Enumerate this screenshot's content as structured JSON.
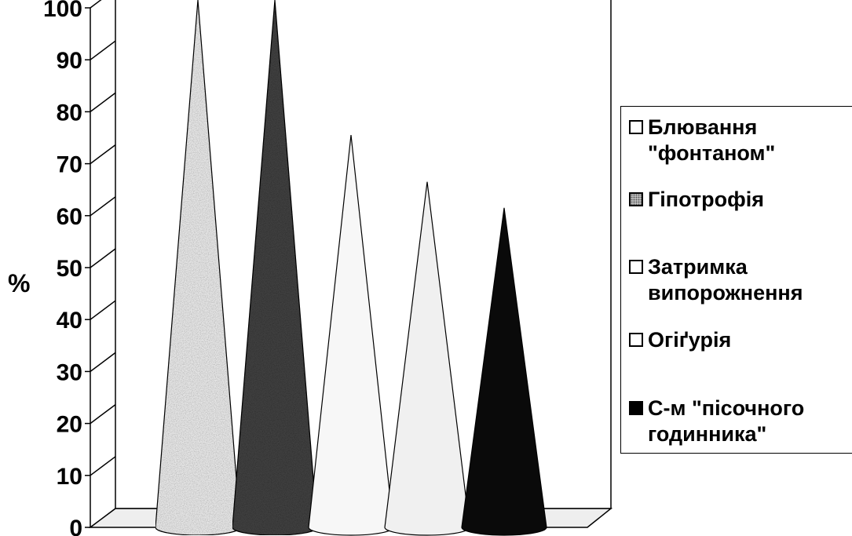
{
  "chart_data": {
    "type": "bar",
    "categories": [
      ""
    ],
    "ylabel": "%",
    "ylim": [
      0,
      100
    ],
    "yticks": [
      0,
      10,
      20,
      30,
      40,
      50,
      60,
      70,
      80,
      90,
      100
    ],
    "grid": true,
    "legend_position": "right",
    "series": [
      {
        "name": "Блювання \"фонтаном\"",
        "values": [
          100
        ],
        "color": "#e4e4e4"
      },
      {
        "name": "Гіпотрофія",
        "values": [
          100
        ],
        "color": "#404040"
      },
      {
        "name": "Затримка випорожнення",
        "values": [
          74
        ],
        "color": "#f7f7f7"
      },
      {
        "name": "Огіґурія",
        "values": [
          65
        ],
        "color": "#f0f0f0"
      },
      {
        "name": "С-м \"пісочного годинника\"",
        "values": [
          60
        ],
        "color": "#0a0a0a"
      }
    ]
  },
  "legend": {
    "items": [
      {
        "label": "Блювання\n\"фонтаном\"",
        "swatch_icon": "white-square-icon"
      },
      {
        "label": "Гіпотрофія",
        "swatch_icon": "dotted-square-icon"
      },
      {
        "label": "Затримка\nвипорожнення",
        "swatch_icon": "white-square-icon"
      },
      {
        "label": "Огіґурія",
        "swatch_icon": "white-square-icon"
      },
      {
        "label": "С-м \"пісочного\nгодинника\"",
        "swatch_icon": "black-square-icon"
      }
    ]
  }
}
